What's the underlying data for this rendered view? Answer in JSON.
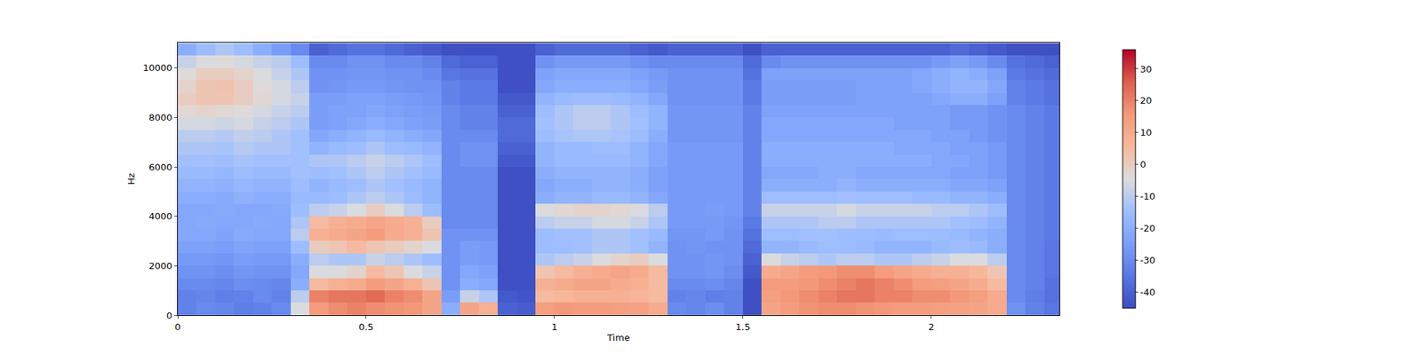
{
  "chart_data": {
    "type": "heatmap",
    "x_label": "Time",
    "y_label": "Hz",
    "x": [
      0.025,
      0.075,
      0.125,
      0.175,
      0.225,
      0.275,
      0.325,
      0.375,
      0.425,
      0.475,
      0.525,
      0.575,
      0.625,
      0.675,
      0.725,
      0.775,
      0.825,
      0.875,
      0.925,
      0.975,
      1.025,
      1.075,
      1.125,
      1.175,
      1.225,
      1.275,
      1.325,
      1.375,
      1.425,
      1.475,
      1.525,
      1.575,
      1.625,
      1.675,
      1.725,
      1.775,
      1.825,
      1.875,
      1.925,
      1.975,
      2.025,
      2.075,
      2.125,
      2.175,
      2.225,
      2.275,
      2.325
    ],
    "y": [
      250,
      750,
      1250,
      1750,
      2250,
      2750,
      3250,
      3750,
      4250,
      4750,
      5250,
      5750,
      6250,
      6750,
      7250,
      7750,
      8250,
      8750,
      9250,
      9750,
      10250,
      10750
    ],
    "cells": [
      [
        -32,
        -30,
        -31,
        -33,
        -32,
        -30,
        -5,
        15,
        18,
        20,
        18,
        17,
        16,
        12,
        -20,
        12,
        8,
        -40,
        -41,
        14,
        16,
        15,
        15,
        14,
        13,
        10,
        -30,
        -31,
        -29,
        -32,
        -44,
        12,
        15,
        17,
        18,
        18,
        17,
        16,
        15,
        15,
        14,
        13,
        12,
        10,
        -28,
        -32,
        -35
      ],
      [
        -32,
        -31,
        -33,
        -32,
        -30,
        -32,
        -10,
        20,
        22,
        22,
        24,
        20,
        18,
        12,
        -25,
        -8,
        -12,
        -42,
        -43,
        5,
        6,
        8,
        8,
        8,
        7,
        5,
        -32,
        -31,
        -33,
        -32,
        -44,
        14,
        16,
        18,
        20,
        22,
        22,
        20,
        20,
        18,
        18,
        16,
        14,
        10,
        -30,
        -33,
        -36
      ],
      [
        -30,
        -30,
        -31,
        -29,
        -30,
        -31,
        -20,
        5,
        8,
        10,
        15,
        12,
        8,
        2,
        -28,
        -20,
        -22,
        -44,
        -44,
        8,
        10,
        12,
        12,
        10,
        8,
        5,
        -30,
        -30,
        -29,
        -31,
        -44,
        15,
        15,
        16,
        18,
        20,
        22,
        20,
        18,
        15,
        14,
        12,
        10,
        5,
        -30,
        -32,
        -36
      ],
      [
        -28,
        -28,
        -29,
        -27,
        -28,
        -28,
        -22,
        -5,
        -5,
        -2,
        5,
        2,
        -5,
        -8,
        -28,
        -22,
        -24,
        -44,
        -44,
        2,
        5,
        8,
        10,
        12,
        10,
        5,
        -28,
        -28,
        -27,
        -29,
        -42,
        10,
        12,
        15,
        16,
        18,
        18,
        15,
        12,
        10,
        8,
        8,
        6,
        2,
        -30,
        -32,
        -35
      ],
      [
        -26,
        -26,
        -27,
        -25,
        -26,
        -26,
        -20,
        -10,
        -12,
        -12,
        -8,
        -10,
        -12,
        -15,
        -28,
        -25,
        -26,
        -44,
        -44,
        -12,
        -10,
        -8,
        -5,
        -2,
        0,
        -5,
        -28,
        -28,
        -27,
        -28,
        -40,
        -5,
        -8,
        -10,
        -12,
        -10,
        -10,
        -12,
        -12,
        -10,
        -8,
        -5,
        -5,
        -10,
        -30,
        -32,
        -35
      ],
      [
        -24,
        -24,
        -25,
        -23,
        -24,
        -24,
        -15,
        0,
        2,
        5,
        2,
        0,
        -2,
        -5,
        -28,
        -25,
        -26,
        -44,
        -44,
        -15,
        -15,
        -14,
        -12,
        -12,
        -14,
        -18,
        -28,
        -27,
        -28,
        -28,
        -38,
        -18,
        -18,
        -16,
        -15,
        -15,
        -16,
        -18,
        -18,
        -18,
        -16,
        -15,
        -16,
        -20,
        -30,
        -32,
        -35
      ],
      [
        -22,
        -22,
        -23,
        -21,
        -22,
        -22,
        -10,
        8,
        10,
        12,
        15,
        10,
        8,
        2,
        -28,
        -28,
        -28,
        -44,
        -44,
        -15,
        -14,
        -14,
        -12,
        -12,
        -14,
        -16,
        -27,
        -27,
        -26,
        -28,
        -36,
        -15,
        -15,
        -14,
        -14,
        -15,
        -15,
        -16,
        -15,
        -15,
        -15,
        -16,
        -18,
        -20,
        -30,
        -32,
        -34
      ],
      [
        -22,
        -21,
        -22,
        -22,
        -21,
        -22,
        -12,
        5,
        8,
        10,
        12,
        10,
        8,
        0,
        -30,
        -30,
        -30,
        -44,
        -44,
        -10,
        -8,
        -8,
        -6,
        -6,
        -8,
        -12,
        -26,
        -26,
        -26,
        -27,
        -34,
        -12,
        -12,
        -12,
        -10,
        -10,
        -12,
        -12,
        -12,
        -12,
        -12,
        -14,
        -15,
        -18,
        -30,
        -32,
        -34
      ],
      [
        -22,
        -22,
        -21,
        -22,
        -22,
        -21,
        -15,
        -10,
        -8,
        -5,
        0,
        -5,
        -10,
        -15,
        -30,
        -30,
        -30,
        -44,
        -44,
        -5,
        -3,
        -2,
        -2,
        -3,
        -5,
        -10,
        -26,
        -26,
        -25,
        -26,
        -32,
        -8,
        -8,
        -8,
        -8,
        -6,
        -8,
        -8,
        -8,
        -8,
        -10,
        -10,
        -12,
        -15,
        -30,
        -32,
        -34
      ],
      [
        -20,
        -20,
        -21,
        -19,
        -20,
        -20,
        -16,
        -16,
        -15,
        -12,
        -10,
        -12,
        -15,
        -18,
        -30,
        -30,
        -30,
        -44,
        -44,
        -20,
        -18,
        -18,
        -16,
        -16,
        -18,
        -22,
        -26,
        -26,
        -26,
        -26,
        -32,
        -15,
        -15,
        -15,
        -15,
        -14,
        -15,
        -15,
        -15,
        -16,
        -16,
        -18,
        -18,
        -20,
        -30,
        -32,
        -34
      ],
      [
        -18,
        -18,
        -19,
        -17,
        -18,
        -18,
        -15,
        -18,
        -16,
        -15,
        -12,
        -14,
        -16,
        -18,
        -30,
        -30,
        -30,
        -44,
        -44,
        -22,
        -20,
        -20,
        -18,
        -18,
        -20,
        -24,
        -26,
        -26,
        -26,
        -26,
        -32,
        -20,
        -20,
        -20,
        -20,
        -18,
        -20,
        -20,
        -20,
        -20,
        -20,
        -22,
        -22,
        -24,
        -30,
        -32,
        -34
      ],
      [
        -16,
        -16,
        -17,
        -15,
        -16,
        -16,
        -14,
        -15,
        -14,
        -12,
        -10,
        -12,
        -14,
        -16,
        -30,
        -30,
        -30,
        -44,
        -44,
        -20,
        -18,
        -18,
        -18,
        -18,
        -20,
        -24,
        -26,
        -26,
        -26,
        -26,
        -32,
        -22,
        -22,
        -22,
        -20,
        -20,
        -22,
        -22,
        -22,
        -22,
        -22,
        -24,
        -24,
        -26,
        -30,
        -32,
        -34
      ],
      [
        -14,
        -14,
        -15,
        -13,
        -14,
        -14,
        -14,
        -12,
        -12,
        -10,
        -8,
        -10,
        -12,
        -15,
        -30,
        -28,
        -28,
        -42,
        -42,
        -18,
        -16,
        -16,
        -16,
        -16,
        -18,
        -22,
        -26,
        -26,
        -26,
        -26,
        -32,
        -20,
        -20,
        -20,
        -20,
        -20,
        -20,
        -20,
        -20,
        -20,
        -22,
        -22,
        -24,
        -26,
        -30,
        -32,
        -34
      ],
      [
        -12,
        -12,
        -13,
        -11,
        -12,
        -12,
        -14,
        -18,
        -16,
        -15,
        -12,
        -15,
        -16,
        -18,
        -30,
        -28,
        -28,
        -40,
        -40,
        -18,
        -16,
        -16,
        -15,
        -15,
        -18,
        -22,
        -26,
        -26,
        -26,
        -26,
        -32,
        -20,
        -20,
        -20,
        -20,
        -20,
        -20,
        -20,
        -22,
        -22,
        -22,
        -24,
        -24,
        -26,
        -30,
        -32,
        -34
      ],
      [
        -10,
        -10,
        -11,
        -9,
        -10,
        -12,
        -14,
        -22,
        -20,
        -18,
        -16,
        -18,
        -20,
        -22,
        -30,
        -30,
        -30,
        -38,
        -38,
        -15,
        -13,
        -12,
        -12,
        -13,
        -15,
        -20,
        -27,
        -27,
        -27,
        -27,
        -32,
        -22,
        -22,
        -22,
        -22,
        -22,
        -22,
        -22,
        -22,
        -22,
        -24,
        -24,
        -26,
        -28,
        -30,
        -32,
        -34
      ],
      [
        -6,
        -6,
        -7,
        -6,
        -8,
        -10,
        -12,
        -25,
        -24,
        -22,
        -20,
        -22,
        -24,
        -25,
        -30,
        -32,
        -32,
        -38,
        -38,
        -14,
        -12,
        -10,
        -10,
        -12,
        -14,
        -18,
        -27,
        -27,
        -27,
        -27,
        -32,
        -22,
        -22,
        -22,
        -22,
        -22,
        -22,
        -22,
        -24,
        -24,
        -24,
        -26,
        -26,
        -28,
        -30,
        -32,
        -34
      ],
      [
        -3,
        -2,
        -3,
        -4,
        -6,
        -8,
        -10,
        -25,
        -24,
        -24,
        -22,
        -24,
        -25,
        -26,
        -30,
        -32,
        -32,
        -40,
        -40,
        -15,
        -12,
        -10,
        -10,
        -12,
        -15,
        -18,
        -27,
        -27,
        -27,
        -27,
        -32,
        -24,
        -24,
        -24,
        -24,
        -24,
        -24,
        -24,
        -24,
        -24,
        -24,
        -26,
        -26,
        -28,
        -30,
        -32,
        -34
      ],
      [
        0,
        2,
        2,
        0,
        -3,
        -6,
        -8,
        -25,
        -25,
        -24,
        -24,
        -25,
        -26,
        -27,
        -32,
        -34,
        -34,
        -42,
        -42,
        -18,
        -16,
        -15,
        -15,
        -16,
        -18,
        -22,
        -28,
        -28,
        -28,
        -28,
        -34,
        -25,
        -25,
        -25,
        -25,
        -25,
        -24,
        -24,
        -24,
        -24,
        -22,
        -20,
        -20,
        -24,
        -32,
        -34,
        -36
      ],
      [
        -2,
        2,
        3,
        0,
        -4,
        -6,
        -10,
        -28,
        -27,
        -26,
        -26,
        -27,
        -28,
        -28,
        -32,
        -34,
        -34,
        -44,
        -44,
        -22,
        -20,
        -20,
        -20,
        -20,
        -22,
        -25,
        -28,
        -28,
        -28,
        -28,
        -34,
        -25,
        -25,
        -25,
        -25,
        -25,
        -24,
        -24,
        -24,
        -22,
        -20,
        -18,
        -18,
        -22,
        -32,
        -34,
        -36
      ],
      [
        -4,
        0,
        0,
        -2,
        -5,
        -8,
        -12,
        -28,
        -28,
        -27,
        -27,
        -28,
        -28,
        -30,
        -35,
        -36,
        -36,
        -44,
        -44,
        -24,
        -22,
        -22,
        -22,
        -22,
        -24,
        -26,
        -28,
        -28,
        -28,
        -28,
        -36,
        -24,
        -24,
        -24,
        -24,
        -24,
        -24,
        -24,
        -24,
        -22,
        -20,
        -18,
        -20,
        -24,
        -34,
        -36,
        -38
      ],
      [
        -8,
        -5,
        -4,
        -6,
        -8,
        -10,
        -15,
        -30,
        -30,
        -28,
        -28,
        -30,
        -30,
        -32,
        -38,
        -40,
        -40,
        -44,
        -44,
        -28,
        -26,
        -26,
        -26,
        -26,
        -28,
        -30,
        -30,
        -30,
        -30,
        -30,
        -38,
        -30,
        -28,
        -28,
        -28,
        -28,
        -28,
        -28,
        -28,
        -28,
        -26,
        -24,
        -26,
        -30,
        -36,
        -38,
        -40
      ],
      [
        -20,
        -15,
        -12,
        -15,
        -20,
        -25,
        -30,
        -40,
        -38,
        -36,
        -36,
        -38,
        -40,
        -42,
        -44,
        -44,
        -44,
        -44,
        -44,
        -40,
        -38,
        -38,
        -38,
        -38,
        -40,
        -42,
        -40,
        -40,
        -40,
        -40,
        -44,
        -40,
        -40,
        -40,
        -40,
        -40,
        -40,
        -40,
        -40,
        -40,
        -40,
        -38,
        -40,
        -42,
        -44,
        -44,
        -44
      ]
    ],
    "xlim": [
      0,
      2.34
    ],
    "xticks": [
      0,
      0.5,
      1,
      1.5,
      2
    ],
    "ylim": [
      0,
      11025
    ],
    "yticks": [
      0,
      2000,
      4000,
      6000,
      8000,
      10000
    ],
    "colorbar": {
      "range": [
        -45,
        36
      ],
      "ticks": [
        -40,
        -30,
        -20,
        -10,
        0,
        10,
        20,
        30
      ]
    }
  }
}
